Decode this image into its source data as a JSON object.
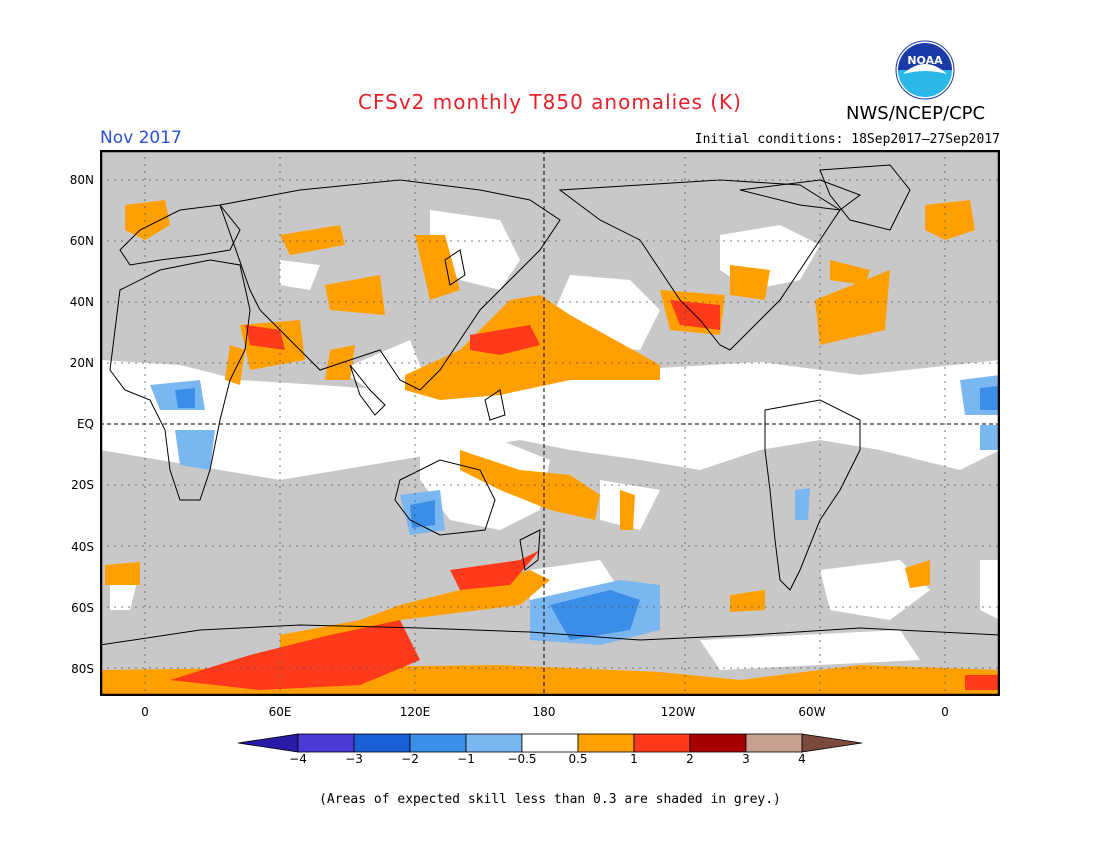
{
  "title": "CFSv2 monthly T850 anomalies (K)",
  "month": "Nov 2017",
  "initial_conditions": "Initial conditions: 18Sep2017–27Sep2017",
  "agency": "NWS/NCEP/CPC",
  "logo_text": "NOAA",
  "lat_labels": [
    "80N",
    "60N",
    "40N",
    "20N",
    "EQ",
    "20S",
    "40S",
    "60S",
    "80S"
  ],
  "lon_labels": [
    "0",
    "60E",
    "120E",
    "180",
    "120W",
    "60W",
    "0"
  ],
  "colorbar_labels": [
    "−4",
    "−3",
    "−2",
    "−1",
    "−0.5",
    "0.5",
    "1",
    "2",
    "3",
    "4"
  ],
  "colors": {
    "grey_low_skill": "#c8c8c8",
    "lt_blue": "#7ab6f0",
    "mid_blue": "#3a8ee8",
    "blue": "#1a5ed6",
    "dk_blue": "#4a3ad6",
    "neutral": "#ffffff",
    "orange": "#ffa000",
    "red_orange": "#ff3a1a",
    "dark_red": "#a80000",
    "tan": "#c8a090",
    "brown": "#7a4a3a"
  },
  "footnote": "(Areas of expected skill less than 0.3 are shaded in grey.)"
}
